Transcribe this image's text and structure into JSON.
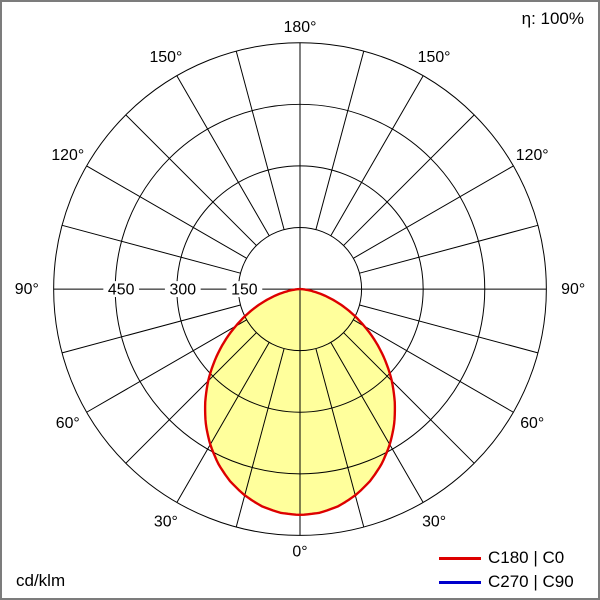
{
  "header": {
    "efficiency_label": "η: 100%"
  },
  "footer": {
    "unit_label": "cd/klm"
  },
  "legend": [
    {
      "label": "C180 | C0",
      "color": "#dd0000"
    },
    {
      "label": "C270 | C90",
      "color": "#0000cc"
    }
  ],
  "chart_data": {
    "type": "polar",
    "subtype": "photometric-luminous-intensity-distribution",
    "unit": "cd/klm",
    "efficiency": "η: 100%",
    "grid": {
      "max_value": 600,
      "ring_values": [
        150,
        300,
        450,
        600
      ],
      "ring_label_values": [
        450,
        300,
        150
      ],
      "spoke_step_deg": 15,
      "angle_label_step_deg": 30,
      "angle_labels": [
        "0°",
        "30°",
        "60°",
        "90°",
        "120°",
        "150°",
        "180°"
      ],
      "line_color": "#000000",
      "background": "#ffffff"
    },
    "series": [
      {
        "name": "C180 | C0",
        "stroke": "#dd0000",
        "fill": "#ffff9c",
        "symmetric": true,
        "visible": true,
        "gamma_deg": [
          0,
          5,
          10,
          15,
          20,
          25,
          30,
          35,
          40,
          45,
          50,
          55,
          60,
          65,
          70,
          75,
          80,
          85,
          90
        ],
        "values": [
          550,
          547,
          537,
          520,
          498,
          470,
          437,
          400,
          359,
          316,
          271,
          226,
          181,
          139,
          99,
          63,
          33,
          11,
          0
        ]
      },
      {
        "name": "C270 | C90",
        "stroke": "#0000cc",
        "fill": null,
        "symmetric": true,
        "visible": false
      }
    ]
  }
}
